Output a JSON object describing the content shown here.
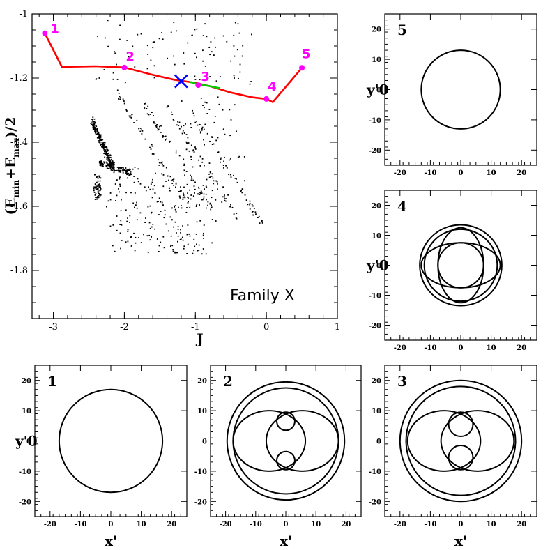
{
  "colors": {
    "highlight": "#ff00ff",
    "family_curve": "#ff0000",
    "stable_segment": "#00cc00",
    "marker": "#0000ff",
    "ink": "#000000"
  },
  "chart_data": [
    {
      "id": "main",
      "type": "scatter",
      "xlabel": "J",
      "ylabel": "(E_min+E_max)/2",
      "annotation": "Family X",
      "xlim": [
        -3.3,
        1.0
      ],
      "ylim": [
        -1.95,
        -1.0
      ],
      "xticks": [
        "-3",
        "-2",
        "-1",
        "0",
        "1"
      ],
      "xtick_values": [
        -3,
        -2,
        -1,
        0,
        1
      ],
      "yticks": [
        "-1",
        "-1.2",
        "-1.4",
        "-1.6",
        "-1.8"
      ],
      "ytick_values": [
        -1.0,
        -1.2,
        -1.4,
        -1.6,
        -1.8
      ],
      "family_curve": [
        [
          -3.12,
          -1.06
        ],
        [
          -2.88,
          -1.165
        ],
        [
          -2.4,
          -1.163
        ],
        [
          -2.0,
          -1.167
        ],
        [
          -1.6,
          -1.19
        ],
        [
          -1.3,
          -1.205
        ],
        [
          -1.0,
          -1.215
        ],
        [
          -0.8,
          -1.225
        ],
        [
          -0.5,
          -1.245
        ],
        [
          -0.2,
          -1.26
        ],
        [
          0.0,
          -1.265
        ],
        [
          0.09,
          -1.275
        ],
        [
          0.5,
          -1.168
        ]
      ],
      "stable_segment": [
        [
          -1.08,
          -1.212
        ],
        [
          -0.95,
          -1.22
        ],
        [
          -0.8,
          -1.225
        ],
        [
          -0.65,
          -1.232
        ]
      ],
      "marked_points": [
        {
          "label": "1",
          "x": -3.12,
          "y": -1.06
        },
        {
          "label": "2",
          "x": -2.0,
          "y": -1.167
        },
        {
          "label": "3",
          "x": -0.96,
          "y": -1.222
        },
        {
          "label": "4",
          "x": 0.0,
          "y": -1.265
        },
        {
          "label": "5",
          "x": 0.5,
          "y": -1.168
        }
      ],
      "marker_x": {
        "x": -1.2,
        "y": -1.21
      }
    },
    {
      "id": "orbit-5",
      "type": "line",
      "panel_label": "5",
      "xlabel": "",
      "ylabel": "y'0",
      "xlim": [
        -25,
        25
      ],
      "ylim": [
        -25,
        25
      ],
      "ticks": [
        -20,
        -10,
        0,
        10,
        20
      ],
      "tick_labels": [
        "-20",
        "-10",
        "0",
        "10",
        "20"
      ],
      "circles": [
        {
          "cx": 0,
          "cy": 0,
          "r": 13
        }
      ]
    },
    {
      "id": "orbit-4",
      "type": "line",
      "panel_label": "4",
      "xlabel": "",
      "ylabel": "y'0",
      "xlim": [
        -25,
        25
      ],
      "ylim": [
        -25,
        25
      ],
      "ticks": [
        -20,
        -10,
        0,
        10,
        20
      ],
      "tick_labels": [
        "-20",
        "-10",
        "0",
        "10",
        "20"
      ],
      "circles": [
        {
          "cx": 0,
          "cy": 0,
          "r": 13.5
        },
        {
          "cx": 0,
          "cy": 0,
          "r": 12
        },
        {
          "cx": 0,
          "cy": 0,
          "r": 7.5
        }
      ],
      "ellipses": [
        {
          "cx": 0,
          "cy": 0,
          "rx": 13,
          "ry": 7.5
        },
        {
          "cx": 0,
          "cy": 0,
          "rx": 7.5,
          "ry": 12.5
        }
      ]
    },
    {
      "id": "orbit-1",
      "type": "line",
      "panel_label": "1",
      "xlabel": "x'",
      "ylabel": "y'0",
      "xlim": [
        -25,
        25
      ],
      "ylim": [
        -25,
        25
      ],
      "ticks": [
        -20,
        -10,
        0,
        10,
        20
      ],
      "tick_labels": [
        "-20",
        "-10",
        "0",
        "10",
        "20"
      ],
      "circles": [
        {
          "cx": 0,
          "cy": 0,
          "r": 17
        }
      ]
    },
    {
      "id": "orbit-2",
      "type": "line",
      "panel_label": "2",
      "xlabel": "x'",
      "ylabel": "",
      "xlim": [
        -25,
        25
      ],
      "ylim": [
        -25,
        25
      ],
      "ticks": [
        -20,
        -10,
        0,
        10,
        20
      ],
      "tick_labels": [
        "-20",
        "-10",
        "0",
        "10",
        "20"
      ],
      "circles": [
        {
          "cx": 0,
          "cy": 0,
          "r": 19.5
        },
        {
          "cx": 0,
          "cy": 0,
          "r": 17.5
        },
        {
          "cx": 0,
          "cy": 6.5,
          "r": 3
        },
        {
          "cx": 0,
          "cy": -6.5,
          "r": 3
        }
      ],
      "ellipses": [
        {
          "cx": -5.5,
          "cy": 0,
          "rx": 12,
          "ry": 10
        },
        {
          "cx": 5.5,
          "cy": 0,
          "rx": 12,
          "ry": 10
        }
      ]
    },
    {
      "id": "orbit-3",
      "type": "line",
      "panel_label": "3",
      "xlabel": "x'",
      "ylabel": "",
      "xlim": [
        -25,
        25
      ],
      "ylim": [
        -25,
        25
      ],
      "ticks": [
        -20,
        -10,
        0,
        10,
        20
      ],
      "tick_labels": [
        "-20",
        "-10",
        "0",
        "10",
        "20"
      ],
      "circles": [
        {
          "cx": 0,
          "cy": 0,
          "r": 20
        },
        {
          "cx": 0,
          "cy": 0,
          "r": 18
        },
        {
          "cx": 0,
          "cy": 5.5,
          "r": 4
        },
        {
          "cx": 0,
          "cy": -5.5,
          "r": 4
        }
      ],
      "ellipses": [
        {
          "cx": -5.5,
          "cy": 0,
          "rx": 12,
          "ry": 10
        },
        {
          "cx": 5.5,
          "cy": 0,
          "rx": 12,
          "ry": 10
        }
      ]
    }
  ]
}
